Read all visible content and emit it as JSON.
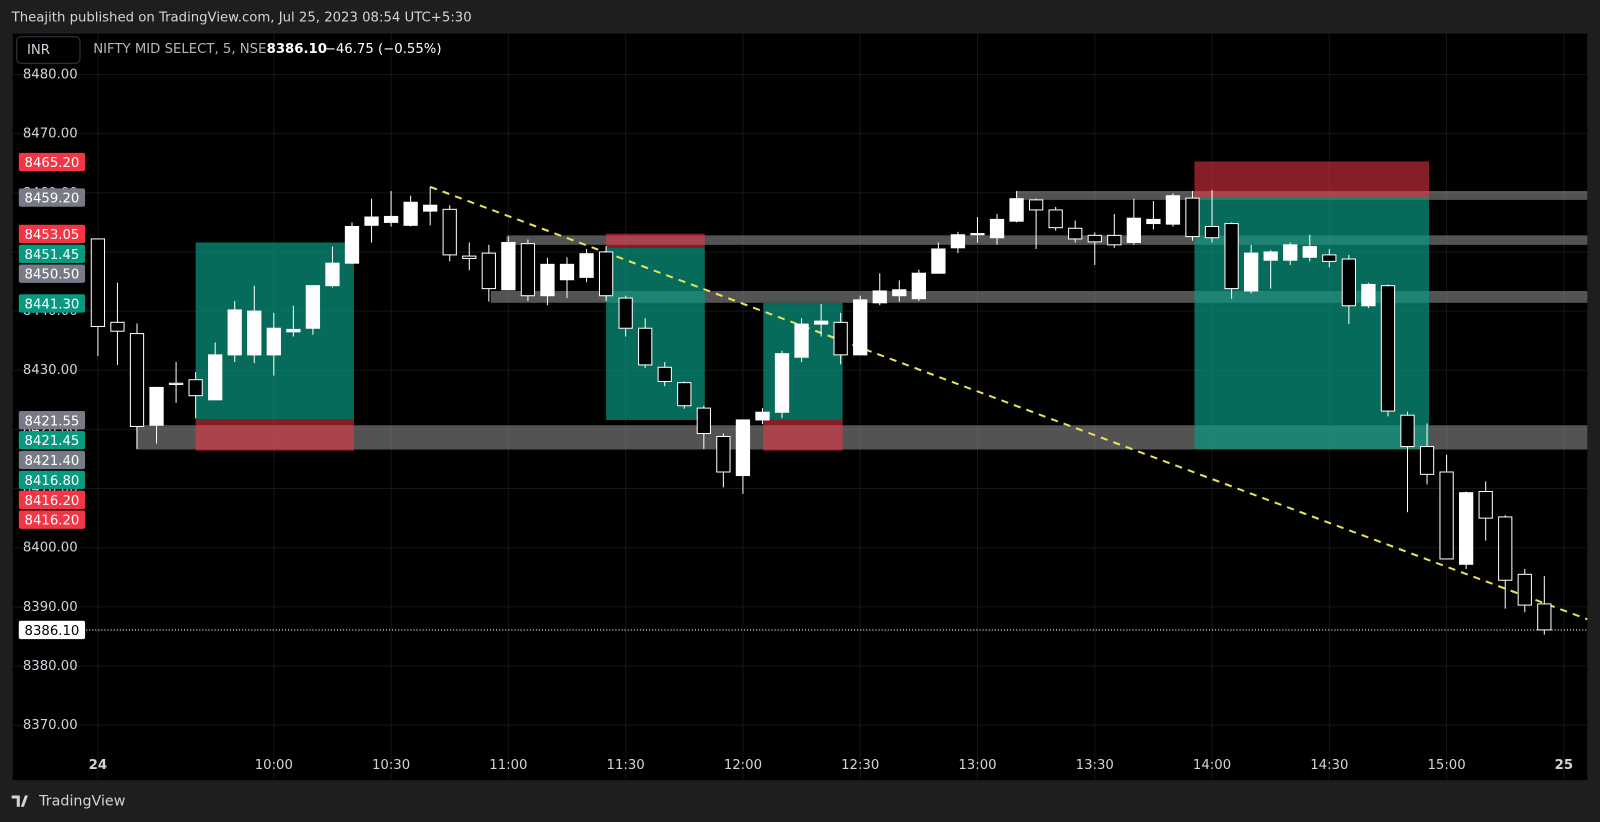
{
  "header": {
    "published": "Theajith published on TradingView.com, Jul 25, 2023 08:54 UTC+5:30",
    "currency": "INR",
    "symbol": "NIFTY MID SELECT, 5, NSE",
    "price": "8386.10",
    "change": "−46.75 (−0.55%)"
  },
  "footer": {
    "brand": "TradingView"
  },
  "chart_data": {
    "type": "candlestick",
    "up_color": "#ffffff",
    "down_color": "#000000",
    "wick_color": "#ffffff",
    "open": [
      8452.2,
      8438.1,
      8436.2,
      8420.7,
      8427.8,
      8428.4,
      8425.0,
      8432.6,
      8432.6,
      8432.6,
      8436.5,
      8437.1,
      8444.3,
      8448.1,
      8454.5,
      8455.0,
      8454.5,
      8456.9,
      8457.2,
      8449.3,
      8449.8,
      8443.6,
      8451.4,
      8442.6,
      8445.3,
      8445.7,
      8450.0,
      8442.2,
      8437.1,
      8430.5,
      8427.9,
      8423.6,
      8418.8,
      8412.2,
      8421.6,
      8422.9,
      8432.2,
      8437.8,
      8438.1,
      8432.6,
      8441.4,
      8442.6,
      8442.1,
      8446.4,
      8450.7,
      8452.9,
      8452.4,
      8455.2,
      8458.8,
      8457.1,
      8454.0,
      8452.8,
      8452.8,
      8451.6,
      8454.8,
      8454.7,
      8459.1,
      8454.3,
      8454.8,
      8443.4,
      8448.6,
      8448.6,
      8449.1,
      8449.5,
      8448.8,
      8440.9,
      8444.3,
      8422.4,
      8417.1,
      8412.8,
      8397.2,
      8409.5,
      8405.2,
      8395.5,
      8390.5
    ],
    "high": [
      8452.2,
      8444.8,
      8437.9,
      8427.1,
      8431.4,
      8429.7,
      8434.7,
      8441.7,
      8444.3,
      8439.7,
      8440.9,
      8444.3,
      8450.9,
      8455.0,
      8459.0,
      8460.3,
      8459.5,
      8461.0,
      8457.9,
      8451.6,
      8451.2,
      8452.6,
      8452.1,
      8449.0,
      8449.1,
      8450.5,
      8451.0,
      8442.6,
      8438.8,
      8431.4,
      8428.1,
      8424.0,
      8419.3,
      8421.6,
      8423.6,
      8433.3,
      8438.8,
      8441.2,
      8439.7,
      8442.6,
      8446.4,
      8445.2,
      8447.0,
      8451.6,
      8453.4,
      8455.9,
      8456.4,
      8460.3,
      8459.0,
      8457.6,
      8455.3,
      8453.3,
      8456.4,
      8459.0,
      8458.6,
      8459.9,
      8460.3,
      8460.5,
      8455.0,
      8451.2,
      8450.3,
      8451.6,
      8452.9,
      8450.5,
      8449.5,
      8444.8,
      8444.5,
      8423.0,
      8421.0,
      8415.7,
      8409.5,
      8411.2,
      8405.5,
      8396.4,
      8395.2
    ],
    "low": [
      8432.4,
      8430.9,
      8416.7,
      8417.6,
      8424.5,
      8421.9,
      8425.0,
      8431.4,
      8431.2,
      8429.1,
      8435.7,
      8436.0,
      8444.0,
      8448.0,
      8451.6,
      8454.3,
      8454.3,
      8454.5,
      8448.4,
      8446.9,
      8441.6,
      8443.6,
      8441.7,
      8441.0,
      8442.2,
      8444.9,
      8441.7,
      8435.7,
      8430.4,
      8427.3,
      8423.5,
      8416.7,
      8410.2,
      8409.1,
      8420.9,
      8421.9,
      8431.4,
      8435.7,
      8431.0,
      8432.6,
      8441.0,
      8441.6,
      8441.7,
      8446.4,
      8449.8,
      8451.6,
      8451.2,
      8455.0,
      8450.5,
      8453.6,
      8451.6,
      8447.8,
      8450.7,
      8451.2,
      8453.8,
      8454.3,
      8451.9,
      8451.6,
      8442.1,
      8443.0,
      8443.8,
      8447.8,
      8448.4,
      8447.4,
      8437.8,
      8440.5,
      8422.2,
      8406.0,
      8410.7,
      8398.1,
      8396.4,
      8401.2,
      8389.7,
      8389.1,
      8385.3
    ],
    "close": [
      8437.4,
      8436.6,
      8420.5,
      8427.1,
      8427.6,
      8425.7,
      8432.6,
      8440.2,
      8440.0,
      8437.1,
      8436.9,
      8444.3,
      8448.1,
      8454.3,
      8455.9,
      8456.0,
      8458.4,
      8457.9,
      8449.5,
      8448.9,
      8443.8,
      8451.6,
      8442.6,
      8447.9,
      8447.9,
      8449.7,
      8442.6,
      8437.1,
      8430.9,
      8428.1,
      8424.0,
      8419.3,
      8412.8,
      8421.6,
      8422.9,
      8432.8,
      8437.8,
      8438.3,
      8432.6,
      8441.9,
      8443.4,
      8443.6,
      8446.4,
      8450.5,
      8452.9,
      8453.1,
      8455.5,
      8459.0,
      8457.1,
      8454.1,
      8452.2,
      8451.7,
      8451.2,
      8455.7,
      8455.5,
      8459.5,
      8452.6,
      8452.4,
      8443.8,
      8449.8,
      8450.0,
      8451.2,
      8450.9,
      8448.4,
      8440.9,
      8444.5,
      8423.1,
      8417.1,
      8412.4,
      8398.1,
      8409.3,
      8405.0,
      8394.5,
      8390.3,
      8386.1
    ],
    "xlim": [
      -4.36,
      76.2
    ],
    "ylim": [
      8360.7,
      8486.9
    ],
    "grid": true,
    "xticks": [
      {
        "value": 0,
        "label": "24"
      },
      {
        "value": 9,
        "label": "10:00"
      },
      {
        "value": 15,
        "label": "10:30"
      },
      {
        "value": 21,
        "label": "11:00"
      },
      {
        "value": 27,
        "label": "11:30"
      },
      {
        "value": 33,
        "label": "12:00"
      },
      {
        "value": 39,
        "label": "12:30"
      },
      {
        "value": 45,
        "label": "13:00"
      },
      {
        "value": 51,
        "label": "13:30"
      },
      {
        "value": 57,
        "label": "14:00"
      },
      {
        "value": 63,
        "label": "14:30"
      },
      {
        "value": 69,
        "label": "15:00"
      },
      {
        "value": 75,
        "label": "25"
      }
    ],
    "yticks": [
      {
        "value": 8480,
        "label": "8480.00"
      },
      {
        "value": 8470,
        "label": "8470.00"
      },
      {
        "value": 8460,
        "label": "8460.00"
      },
      {
        "value": 8450,
        "label": "8450.00"
      },
      {
        "value": 8440,
        "label": "8440.00"
      },
      {
        "value": 8430,
        "label": "8430.00"
      },
      {
        "value": 8420,
        "label": "8420.00"
      },
      {
        "value": 8410,
        "label": "8410.00"
      },
      {
        "value": 8400,
        "label": "8400.00"
      },
      {
        "value": 8390,
        "label": "8390.00"
      },
      {
        "value": 8380,
        "label": "8380.00"
      },
      {
        "value": 8370,
        "label": "8370.00"
      }
    ],
    "zones": [
      {
        "start": 47,
        "top": 8460.3,
        "bottom": 8458.8
      },
      {
        "start": 20.9,
        "top": 8452.8,
        "bottom": 8451.2
      },
      {
        "start": 20.1,
        "top": 8443.4,
        "bottom": 8441.4
      },
      {
        "start": 1.96,
        "top": 8420.7,
        "bottom": 8416.6
      }
    ],
    "positions": [
      {
        "start": 5,
        "end": 13.1,
        "target": 8451.6,
        "entry": 8421.7,
        "stop": 8416.4
      },
      {
        "start": 26,
        "end": 31.05,
        "target": 8421.6,
        "entry": 8450.7,
        "stop": 8453.1
      },
      {
        "start": 34.04,
        "end": 38.1,
        "target": 8441.4,
        "entry": 8421.6,
        "stop": 8416.4
      },
      {
        "start": 56.1,
        "end": 68.1,
        "target": 8416.7,
        "entry": 8459.3,
        "stop": 8465.3
      }
    ],
    "trendline": {
      "x": [
        17,
        76.2
      ],
      "y": [
        8461.0,
        8387.9
      ],
      "color": "#e8e05a"
    },
    "price_tags": [
      {
        "value": 8465.2,
        "label": "8465.20",
        "color": "#f23645"
      },
      {
        "value": 8459.2,
        "label": "8459.20",
        "color": "#787b86"
      },
      {
        "value": 8453.05,
        "label": "8453.05",
        "color": "#f23645"
      },
      {
        "value": 8451.45,
        "label": "8451.45",
        "color": "#089981"
      },
      {
        "value": 8450.5,
        "label": "8450.50",
        "color": "#787b86"
      },
      {
        "value": 8441.3,
        "label": "8441.30",
        "color": "#089981"
      },
      {
        "value": 8421.55,
        "label": "8421.55",
        "color": "#787b86"
      },
      {
        "value": 8421.45,
        "label": "8421.45",
        "color": "#089981"
      },
      {
        "value": 8421.4,
        "label": "8421.40",
        "color": "#787b86"
      },
      {
        "value": 8416.8,
        "label": "8416.80",
        "color": "#089981"
      },
      {
        "value": 8416.2,
        "label": "8416.20",
        "color": "#f23645"
      },
      {
        "value": 8416.2,
        "label": "8416.20",
        "color": "#f23645"
      },
      {
        "value": 8386.1,
        "label": "8386.10",
        "color": "#ffffff"
      }
    ],
    "last_price": 8386.1
  }
}
